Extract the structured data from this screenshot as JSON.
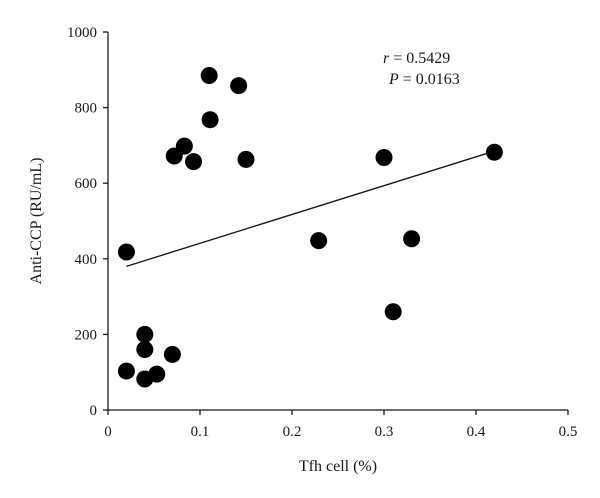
{
  "chart_data": {
    "type": "scatter",
    "title": "",
    "xlabel": "Tfh cell (%)",
    "ylabel": "Anti-CCP (RU/mL)",
    "xlim": [
      0,
      0.5
    ],
    "ylim": [
      0,
      1000
    ],
    "x_ticks": [
      0,
      0.1,
      0.2,
      0.3,
      0.4,
      0.5
    ],
    "x_tick_labels": [
      "0",
      "0.1",
      "0.2",
      "0.3",
      "0.4",
      "0.5"
    ],
    "y_ticks": [
      0,
      200,
      400,
      600,
      800,
      1000
    ],
    "y_tick_labels": [
      "0",
      "200",
      "400",
      "600",
      "800",
      "1000"
    ],
    "grid": false,
    "points": [
      {
        "x": 0.02,
        "y": 418
      },
      {
        "x": 0.02,
        "y": 103
      },
      {
        "x": 0.04,
        "y": 200
      },
      {
        "x": 0.04,
        "y": 160
      },
      {
        "x": 0.04,
        "y": 82
      },
      {
        "x": 0.053,
        "y": 95
      },
      {
        "x": 0.07,
        "y": 147
      },
      {
        "x": 0.072,
        "y": 672
      },
      {
        "x": 0.083,
        "y": 698
      },
      {
        "x": 0.093,
        "y": 657
      },
      {
        "x": 0.11,
        "y": 885
      },
      {
        "x": 0.111,
        "y": 768
      },
      {
        "x": 0.142,
        "y": 858
      },
      {
        "x": 0.15,
        "y": 663
      },
      {
        "x": 0.229,
        "y": 448
      },
      {
        "x": 0.3,
        "y": 668
      },
      {
        "x": 0.31,
        "y": 260
      },
      {
        "x": 0.33,
        "y": 453
      },
      {
        "x": 0.42,
        "y": 682
      }
    ],
    "fit_line": {
      "x": [
        0.02,
        0.42
      ],
      "y": [
        380,
        685
      ]
    },
    "annotation": {
      "r_symbol": "r",
      "r_text": " = 0.5429",
      "p_symbol": "P",
      "p_text": " = 0.0163"
    },
    "colors": {
      "points": "#000000",
      "axis": "#1a1a1a"
    }
  }
}
